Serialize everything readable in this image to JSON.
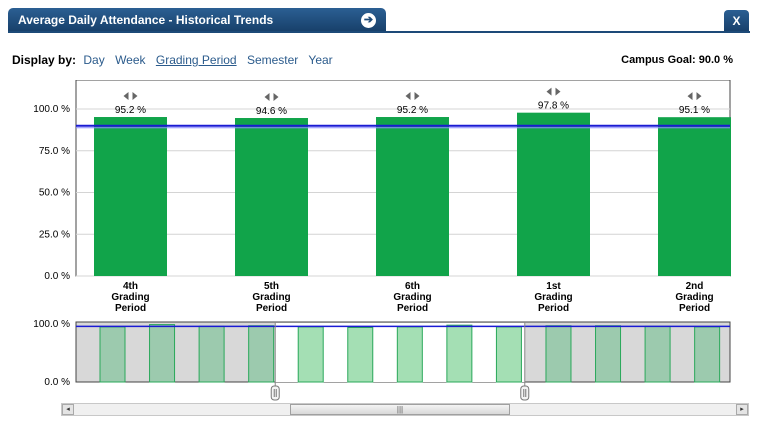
{
  "header": {
    "title": "Average Daily Attendance - Historical Trends",
    "close_label": "X",
    "nav_arrow": "arrow-right-circle-icon"
  },
  "display_by": {
    "label": "Display by:",
    "options": [
      "Day",
      "Week",
      "Grading Period",
      "Semester",
      "Year"
    ],
    "selected": "Grading Period"
  },
  "campus_goal": {
    "label": "Campus Goal: 90.0 %",
    "value": 90.0
  },
  "chart_data": {
    "type": "bar",
    "categories": [
      [
        "4th",
        "Grading",
        "Period"
      ],
      [
        "5th",
        "Grading",
        "Period"
      ],
      [
        "6th",
        "Grading",
        "Period"
      ],
      [
        "1st",
        "Grading",
        "Period"
      ],
      [
        "2nd",
        "Grading",
        "Period"
      ]
    ],
    "values": [
      95.2,
      94.6,
      95.2,
      97.8,
      95.1
    ],
    "value_labels": [
      "95.2 %",
      "94.6 %",
      "95.2 %",
      "97.8 %",
      "95.1 %"
    ],
    "ylim": [
      0,
      100
    ],
    "yticks": [
      0,
      25,
      50,
      75,
      100
    ],
    "ytick_labels": [
      "0.0 %",
      "25.0 %",
      "50.0 %",
      "75.0 %",
      "100.0 %"
    ],
    "goal_line": 90.0,
    "grid": true,
    "colors": {
      "bar": "#11a44a",
      "goal": "#1a1ad4",
      "grid": "#d4d4d4"
    }
  },
  "navigator": {
    "ytick_labels": [
      "100.0 %",
      "0.0 %"
    ],
    "values": [
      95,
      99,
      96,
      97,
      95,
      94,
      95,
      98,
      95,
      97,
      97,
      96,
      95
    ],
    "window_start": 4,
    "window_end": 8,
    "colors": {
      "bar_out": "#9ccaae",
      "bar_in": "#a4dfb4",
      "edge": "#2aa85a",
      "shade": "#d8d8d8"
    }
  },
  "scrollbar": {
    "left_arrow": "◂",
    "right_arrow": "▸",
    "grip": "|||"
  }
}
